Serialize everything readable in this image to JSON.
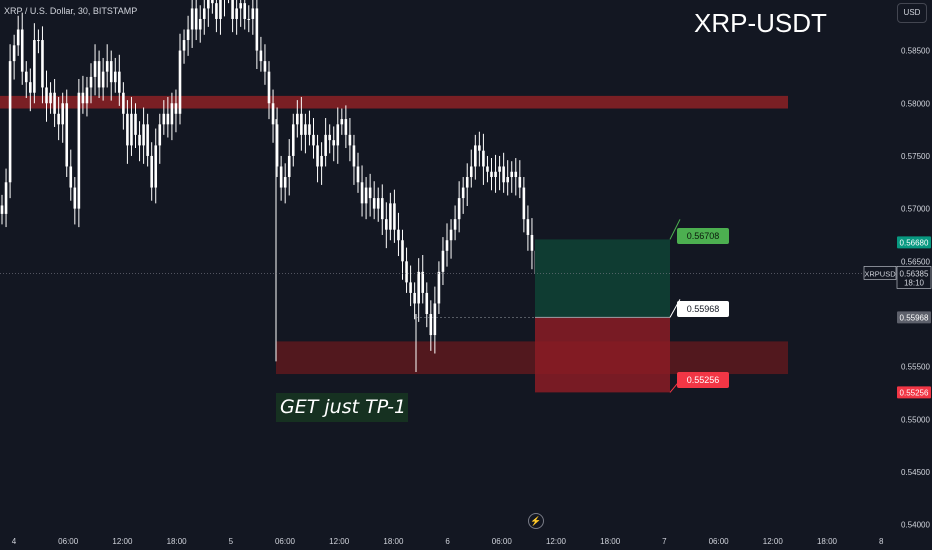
{
  "header": {
    "symbol_info": "XRP / U.S. Dollar, 30, BITSTAMP",
    "big_title": "XRP-USDT",
    "currency_button": "USD"
  },
  "annotation": {
    "note": "GET just TP-1"
  },
  "zap_glyph": "⚡",
  "colors": {
    "background": "#131722",
    "candle": "#ffffff",
    "resistance_zone": "#7a1f24",
    "support_zone": "#5e191d",
    "profit_zone": "#0f3c32",
    "loss_zone": "#8b1c24",
    "target_tag": "#4caf50",
    "stop_tag": "#f23645",
    "axis_text": "#d1d4dc"
  },
  "chart_data": {
    "type": "candlestick",
    "instrument": "XRPUSD",
    "x_tick_labels": [
      "4",
      "06:00",
      "12:00",
      "18:00",
      "5",
      "06:00",
      "12:00",
      "18:00",
      "6",
      "06:00",
      "12:00",
      "18:00",
      "7",
      "06:00",
      "12:00",
      "18:00",
      "8"
    ],
    "y_tick_labels": [
      "0.58500",
      "0.58000",
      "0.57500",
      "0.57000",
      "0.56500",
      "0.55500",
      "0.55000",
      "0.54500",
      "0.54000"
    ],
    "ylim": [
      0.5395,
      0.5898
    ],
    "close_series": [
      0.5695,
      0.5725,
      0.584,
      0.5855,
      0.587,
      0.583,
      0.582,
      0.581,
      0.586,
      0.586,
      0.5815,
      0.58,
      0.581,
      0.579,
      0.578,
      0.58,
      0.574,
      0.572,
      0.57,
      0.581,
      0.58,
      0.5815,
      0.5825,
      0.584,
      0.5815,
      0.583,
      0.584,
      0.582,
      0.583,
      0.581,
      0.579,
      0.576,
      0.579,
      0.577,
      0.576,
      0.578,
      0.575,
      0.572,
      0.576,
      0.578,
      0.579,
      0.578,
      0.58,
      0.579,
      0.585,
      0.586,
      0.587,
      0.589,
      0.587,
      0.588,
      0.589,
      0.591,
      0.5895,
      0.588,
      0.59,
      0.5905,
      0.591,
      0.588,
      0.589,
      0.5895,
      0.588,
      0.588,
      0.589,
      0.585,
      0.584,
      0.583,
      0.58,
      0.578,
      0.574,
      0.572,
      0.573,
      0.575,
      0.578,
      0.579,
      0.577,
      0.578,
      0.577,
      0.576,
      0.574,
      0.575,
      0.577,
      0.5765,
      0.576,
      0.578,
      0.5785,
      0.577,
      0.576,
      0.574,
      0.5725,
      0.5705,
      0.572,
      0.571,
      0.57,
      0.571,
      0.569,
      0.568,
      0.5705,
      0.568,
      0.567,
      0.565,
      0.563,
      0.562,
      0.561,
      0.564,
      0.562,
      0.56,
      0.558,
      0.561,
      0.564,
      0.566,
      0.567,
      0.568,
      0.569,
      0.571,
      0.572,
      0.573,
      0.574,
      0.576,
      0.5755,
      0.574,
      0.5735,
      0.573,
      0.5735,
      0.574,
      0.5725,
      0.573,
      0.5735,
      0.573,
      0.572,
      0.569,
      0.5675,
      0.566,
      0.5638
    ],
    "resistance_zone": {
      "from": 0.5795,
      "to": 0.5807
    },
    "support_zone": {
      "from": 0.5543,
      "to": 0.5574
    },
    "position": {
      "target": 0.56708,
      "entry": 0.55968,
      "stop": 0.55256,
      "target_label": "0.56708",
      "entry_label": "0.55968",
      "stop_label": "0.55256"
    },
    "price_scale_labels": {
      "current_price_top": "0.56680",
      "symbol": "XRPUSD",
      "last_price": "0.56385",
      "countdown": "18:10",
      "entry_marker": "0.55968",
      "stop_marker": "0.55256"
    }
  }
}
